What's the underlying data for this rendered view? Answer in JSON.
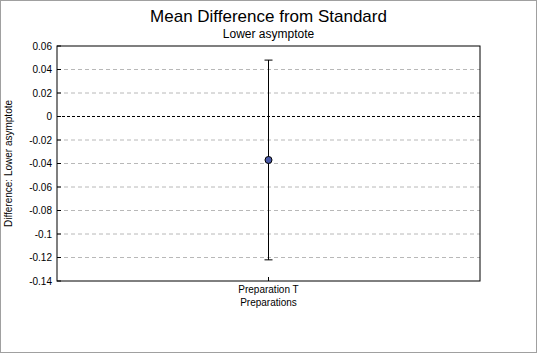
{
  "chart_data": {
    "type": "errorbar",
    "title": "Mean Difference from Standard",
    "subtitle": "Lower asymptote",
    "x_label": "Preparations",
    "y_label": "Difference: Lower asymptote",
    "categories": [
      "Preparation T"
    ],
    "values": [
      -0.037
    ],
    "error": [
      0.085
    ],
    "color": "#4a5aa8",
    "ylim": [
      -0.14,
      0.06
    ],
    "yticks": [
      -0.14,
      -0.12,
      {
        "value": -0.1,
        "label": "-0.1"
      },
      -0.08,
      -0.06,
      -0.04,
      -0.02,
      0,
      0.02,
      0.04,
      0.06
    ],
    "grid": true
  }
}
